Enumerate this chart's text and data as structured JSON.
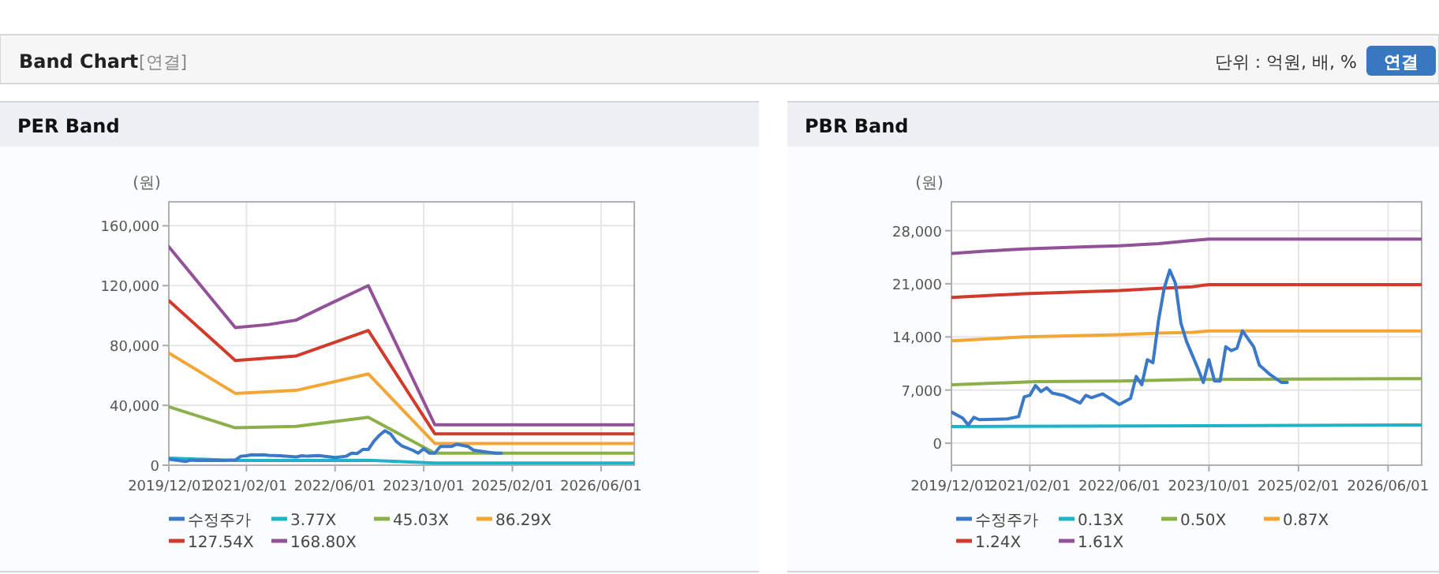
{
  "chart_data": [
    {
      "type": "line",
      "title": "PER Band",
      "ylabel": "(원)",
      "annotations": [
        "Band Chart",
        "[연결]",
        "단위 : 억원, 배, %",
        "연결"
      ],
      "xlim": [
        "2019-12-01",
        "2026-12-01"
      ],
      "xticks": [
        {
          "value": "2019-12-01",
          "label": "2019/12/01"
        },
        {
          "value": "2021-02-01",
          "label": "2021/02/01"
        },
        {
          "value": "2022-06-01",
          "label": "2022/06/01"
        },
        {
          "value": "2023-10-01",
          "label": "2023/10/01"
        },
        {
          "value": "2025-02-01",
          "label": "2025/02/01"
        },
        {
          "value": "2026-06-01",
          "label": "2026/06/01"
        }
      ],
      "ylim": [
        0,
        176000
      ],
      "yticks": [
        0,
        {
          "value": 40000,
          "label": "40,000"
        },
        {
          "value": 80000,
          "label": "80,000"
        },
        {
          "value": 120000,
          "label": "120,000"
        },
        {
          "value": 160000,
          "label": "160,000"
        }
      ],
      "grid": true,
      "legend": "bottom",
      "series": [
        {
          "name": "수정주가",
          "color": "#3a78c9",
          "x": [
            "2019-12",
            "2020-02",
            "2020-03",
            "2020-04",
            "2020-05",
            "2020-10",
            "2020-12",
            "2021-01",
            "2021-02",
            "2021-03",
            "2021-04",
            "2021-05",
            "2021-06",
            "2021-08",
            "2021-11",
            "2021-12",
            "2022-01",
            "2022-03",
            "2022-06",
            "2022-08",
            "2022-09",
            "2022-10",
            "2022-11",
            "2022-12",
            "2023-01",
            "2023-02",
            "2023-03",
            "2023-04",
            "2023-05",
            "2023-06",
            "2023-08",
            "2023-09",
            "2023-10",
            "2023-11",
            "2023-12",
            "2024-01",
            "2024-02",
            "2024-03",
            "2024-04",
            "2024-06",
            "2024-07",
            "2024-09",
            "2024-10",
            "2024-11",
            "2024-12"
          ],
          "values": [
            4000,
            3000,
            2500,
            3400,
            3100,
            3200,
            3500,
            6000,
            6300,
            7000,
            6800,
            7000,
            6600,
            6300,
            5500,
            6300,
            6000,
            6500,
            5200,
            6000,
            8000,
            7800,
            10500,
            10500,
            16000,
            20000,
            23000,
            21000,
            16000,
            13000,
            10000,
            8000,
            11000,
            8000,
            8000,
            12500,
            12500,
            12500,
            14000,
            12500,
            10000,
            9000,
            8500,
            8000,
            8000
          ]
        },
        {
          "name": "3.77X",
          "color": "#1fb3c8",
          "x": [
            "2019-12",
            "2020-12",
            "2022-12",
            "2023-12",
            "2026-12"
          ],
          "values": [
            4800,
            3200,
            3300,
            1400,
            1400
          ]
        },
        {
          "name": "45.03X",
          "color": "#8bb04a",
          "x": [
            "2019-12",
            "2020-12",
            "2021-11",
            "2022-12",
            "2023-12",
            "2026-12"
          ],
          "values": [
            39000,
            25000,
            26000,
            32000,
            8000,
            8000
          ]
        },
        {
          "name": "86.29X",
          "color": "#f3a535",
          "x": [
            "2019-12",
            "2020-12",
            "2021-11",
            "2022-12",
            "2023-12",
            "2026-12"
          ],
          "values": [
            75000,
            48000,
            50000,
            61000,
            14500,
            14500
          ]
        },
        {
          "name": "127.54X",
          "color": "#d23a2a",
          "x": [
            "2019-12",
            "2020-12",
            "2021-11",
            "2022-12",
            "2023-12",
            "2026-12"
          ],
          "values": [
            110000,
            70000,
            73000,
            90000,
            21000,
            21000
          ]
        },
        {
          "name": "168.80X",
          "color": "#93519a",
          "x": [
            "2019-12",
            "2020-12",
            "2021-06",
            "2021-11",
            "2022-04",
            "2022-12",
            "2023-12",
            "2026-12"
          ],
          "values": [
            146000,
            92000,
            94000,
            97000,
            106000,
            120000,
            27000,
            27000
          ]
        }
      ]
    },
    {
      "type": "line",
      "title": "PBR Band",
      "ylabel": "(원)",
      "xlim": [
        "2019-12-01",
        "2026-12-01"
      ],
      "xticks": [
        {
          "value": "2019-12-01",
          "label": "2019/12/01"
        },
        {
          "value": "2021-02-01",
          "label": "2021/02/01"
        },
        {
          "value": "2022-06-01",
          "label": "2022/06/01"
        },
        {
          "value": "2023-10-01",
          "label": "2023/10/01"
        },
        {
          "value": "2025-02-01",
          "label": "2025/02/01"
        },
        {
          "value": "2026-06-01",
          "label": "2026/06/01"
        }
      ],
      "ylim": [
        -2900,
        31800
      ],
      "yticks": [
        0,
        {
          "value": 7000,
          "label": "7,000"
        },
        {
          "value": 14000,
          "label": "14,000"
        },
        {
          "value": 21000,
          "label": "21,000"
        },
        {
          "value": 28000,
          "label": "28,000"
        }
      ],
      "grid": true,
      "legend": "bottom",
      "series": [
        {
          "name": "수정주가",
          "color": "#3a78c9",
          "x": [
            "2019-12",
            "2020-02",
            "2020-03",
            "2020-04",
            "2020-05",
            "2020-10",
            "2020-12",
            "2021-01",
            "2021-02",
            "2021-03",
            "2021-04",
            "2021-05",
            "2021-06",
            "2021-08",
            "2021-11",
            "2021-12",
            "2022-01",
            "2022-03",
            "2022-06",
            "2022-08",
            "2022-09",
            "2022-10",
            "2022-11",
            "2022-12",
            "2023-01",
            "2023-02",
            "2023-03",
            "2023-04",
            "2023-05",
            "2023-06",
            "2023-08",
            "2023-09",
            "2023-10",
            "2023-11",
            "2023-12",
            "2024-01",
            "2024-02",
            "2024-03",
            "2024-04",
            "2024-06",
            "2024-07",
            "2024-09",
            "2024-10",
            "2024-11",
            "2024-12"
          ],
          "values": [
            4100,
            3300,
            2400,
            3400,
            3100,
            3200,
            3500,
            6100,
            6300,
            7600,
            6800,
            7300,
            6600,
            6300,
            5300,
            6300,
            6000,
            6500,
            5100,
            5900,
            8800,
            7700,
            11000,
            10600,
            16200,
            20400,
            22800,
            21100,
            15800,
            13400,
            9900,
            8000,
            11000,
            8200,
            8200,
            12700,
            12200,
            12500,
            14800,
            12700,
            10300,
            9000,
            8500,
            8000,
            8000
          ]
        },
        {
          "name": "0.13X",
          "color": "#1fb3c8",
          "x": [
            "2019-12",
            "2023-09",
            "2026-12"
          ],
          "values": [
            2200,
            2300,
            2400
          ]
        },
        {
          "name": "0.50X",
          "color": "#8bb04a",
          "x": [
            "2019-12",
            "2021-03",
            "2022-06",
            "2023-01",
            "2023-07",
            "2026-12"
          ],
          "values": [
            7700,
            8100,
            8200,
            8300,
            8400,
            8500
          ]
        },
        {
          "name": "0.87X",
          "color": "#f3a535",
          "x": [
            "2019-12",
            "2021-01",
            "2022-06",
            "2023-01",
            "2023-07",
            "2023-10",
            "2026-12"
          ],
          "values": [
            13500,
            14000,
            14300,
            14500,
            14600,
            14800,
            14800
          ]
        },
        {
          "name": "1.24X",
          "color": "#d23a2a",
          "x": [
            "2019-12",
            "2021-01",
            "2022-06",
            "2023-01",
            "2023-07",
            "2023-10",
            "2026-12"
          ],
          "values": [
            19200,
            19700,
            20100,
            20400,
            20600,
            20900,
            20900
          ]
        },
        {
          "name": "1.61X",
          "color": "#93519a",
          "x": [
            "2019-12",
            "2020-06",
            "2021-01",
            "2022-01",
            "2022-06",
            "2023-01",
            "2023-07",
            "2023-10",
            "2026-12"
          ],
          "values": [
            25000,
            25300,
            25600,
            25900,
            26000,
            26300,
            26700,
            26900,
            26900
          ]
        }
      ]
    }
  ]
}
